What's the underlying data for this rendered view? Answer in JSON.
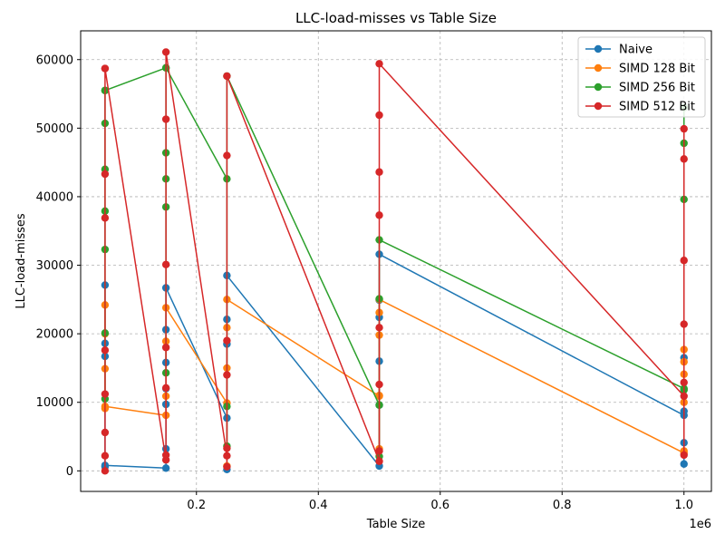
{
  "chart_data": {
    "type": "line",
    "title": "LLC-load-misses vs Table Size",
    "xlabel": "Table Size",
    "ylabel": "LLC-load-misses",
    "x_offset_label": "1e6",
    "xlim": [
      10000,
      1045000
    ],
    "ylim": [
      -3000,
      64200
    ],
    "x_ticks": [
      0.2,
      0.4,
      0.6,
      0.8,
      1.0
    ],
    "x_tick_labels": [
      "0.2",
      "0.4",
      "0.6",
      "0.8",
      "1.0"
    ],
    "y_ticks": [
      0,
      10000,
      20000,
      30000,
      40000,
      50000,
      60000
    ],
    "y_tick_labels": [
      "0",
      "10000",
      "20000",
      "30000",
      "40000",
      "50000",
      "60000"
    ],
    "grid": true,
    "legend_position": "top-right",
    "series": [
      {
        "name": "Naive",
        "color": "#1f77b4",
        "points": [
          [
            50000,
            27100
          ],
          [
            50000,
            16700
          ],
          [
            50000,
            18600
          ],
          [
            50000,
            600
          ],
          [
            50000,
            800
          ],
          [
            150000,
            400
          ],
          [
            150000,
            9700
          ],
          [
            150000,
            3200
          ],
          [
            150000,
            12000
          ],
          [
            150000,
            15800
          ],
          [
            150000,
            20600
          ],
          [
            150000,
            26700
          ],
          [
            250000,
            7700
          ],
          [
            250000,
            200
          ],
          [
            250000,
            18500
          ],
          [
            250000,
            22100
          ],
          [
            250000,
            28500
          ],
          [
            500000,
            700
          ],
          [
            500000,
            9600
          ],
          [
            500000,
            16000
          ],
          [
            500000,
            22400
          ],
          [
            500000,
            24900
          ],
          [
            500000,
            31600
          ],
          [
            1000000,
            8100
          ],
          [
            1000000,
            1000
          ],
          [
            1000000,
            8700
          ],
          [
            1000000,
            16500
          ],
          [
            1000000,
            4100
          ]
        ]
      },
      {
        "name": "SIMD 128 Bit",
        "color": "#ff7f0e",
        "points": [
          [
            50000,
            24200
          ],
          [
            50000,
            9100
          ],
          [
            50000,
            14900
          ],
          [
            50000,
            20000
          ],
          [
            50000,
            9400
          ],
          [
            150000,
            8100
          ],
          [
            150000,
            10900
          ],
          [
            150000,
            18900
          ],
          [
            150000,
            23800
          ],
          [
            250000,
            9900
          ],
          [
            250000,
            700
          ],
          [
            250000,
            15000
          ],
          [
            250000,
            20900
          ],
          [
            250000,
            25000
          ],
          [
            500000,
            10900
          ],
          [
            500000,
            3200
          ],
          [
            500000,
            11000
          ],
          [
            500000,
            19800
          ],
          [
            500000,
            23100
          ],
          [
            500000,
            25000
          ],
          [
            1000000,
            2600
          ],
          [
            1000000,
            10000
          ],
          [
            1000000,
            14100
          ],
          [
            1000000,
            15900
          ],
          [
            1000000,
            17700
          ],
          [
            1000000,
            2900
          ]
        ]
      },
      {
        "name": "SIMD 256 Bit",
        "color": "#2ca02c",
        "points": [
          [
            50000,
            55500
          ],
          [
            50000,
            10500
          ],
          [
            50000,
            20100
          ],
          [
            50000,
            32300
          ],
          [
            50000,
            37900
          ],
          [
            50000,
            44000
          ],
          [
            50000,
            50700
          ],
          [
            50000,
            55500
          ],
          [
            150000,
            58800
          ],
          [
            150000,
            14300
          ],
          [
            150000,
            38500
          ],
          [
            150000,
            42600
          ],
          [
            150000,
            46400
          ],
          [
            150000,
            58800
          ],
          [
            250000,
            42600
          ],
          [
            250000,
            9400
          ],
          [
            250000,
            3600
          ],
          [
            250000,
            57600
          ],
          [
            500000,
            9600
          ],
          [
            500000,
            2100
          ],
          [
            500000,
            25100
          ],
          [
            500000,
            33700
          ],
          [
            1000000,
            12000
          ],
          [
            1000000,
            11800
          ],
          [
            1000000,
            39600
          ],
          [
            1000000,
            47800
          ],
          [
            1000000,
            53000
          ]
        ]
      },
      {
        "name": "SIMD 512 Bit",
        "color": "#d62728",
        "points": [
          [
            50000,
            58700
          ],
          [
            50000,
            0
          ],
          [
            50000,
            2200
          ],
          [
            50000,
            5600
          ],
          [
            50000,
            11200
          ],
          [
            50000,
            17600
          ],
          [
            50000,
            36900
          ],
          [
            50000,
            43300
          ],
          [
            50000,
            58700
          ],
          [
            150000,
            1600
          ],
          [
            150000,
            2300
          ],
          [
            150000,
            12100
          ],
          [
            150000,
            18000
          ],
          [
            150000,
            30100
          ],
          [
            150000,
            51300
          ],
          [
            150000,
            61100
          ],
          [
            250000,
            2200
          ],
          [
            250000,
            600
          ],
          [
            250000,
            3300
          ],
          [
            250000,
            14000
          ],
          [
            250000,
            19000
          ],
          [
            250000,
            46000
          ],
          [
            250000,
            57600
          ],
          [
            500000,
            1400
          ],
          [
            500000,
            2900
          ],
          [
            500000,
            12600
          ],
          [
            500000,
            20900
          ],
          [
            500000,
            37300
          ],
          [
            500000,
            43600
          ],
          [
            500000,
            51900
          ],
          [
            500000,
            59400
          ],
          [
            1000000,
            10900
          ],
          [
            1000000,
            2300
          ],
          [
            1000000,
            12900
          ],
          [
            1000000,
            21400
          ],
          [
            1000000,
            30700
          ],
          [
            1000000,
            45500
          ],
          [
            1000000,
            49900
          ]
        ]
      }
    ]
  }
}
